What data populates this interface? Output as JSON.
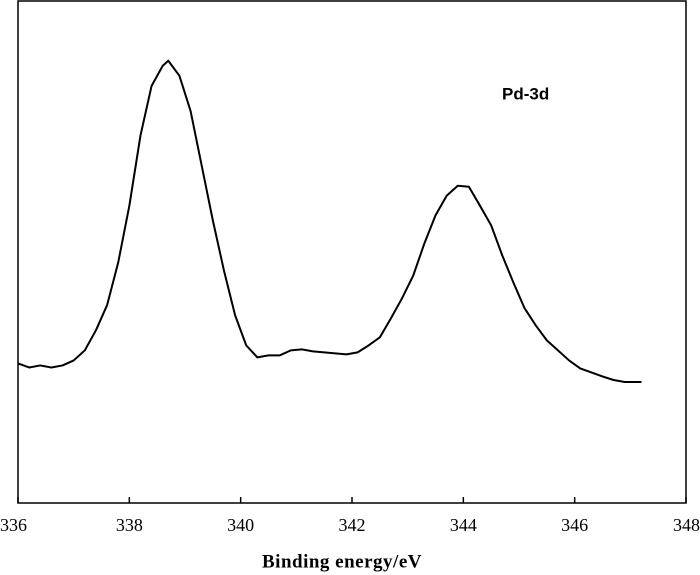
{
  "chart_data": {
    "type": "line",
    "xlabel": "Binding energy/eV",
    "annotation": "Pd-3d",
    "xlim": [
      336,
      348
    ],
    "xticks": [
      336,
      338,
      340,
      342,
      344,
      346,
      348
    ],
    "ylim": [
      0,
      100
    ],
    "color": "#000000",
    "x": [
      336.0,
      336.2,
      336.4,
      336.6,
      336.8,
      337.0,
      337.2,
      337.4,
      337.6,
      337.8,
      338.0,
      338.2,
      338.4,
      338.6,
      338.7,
      338.9,
      339.1,
      339.3,
      339.5,
      339.7,
      339.9,
      340.1,
      340.3,
      340.5,
      340.7,
      340.9,
      341.1,
      341.3,
      341.5,
      341.9,
      342.1,
      342.3,
      342.5,
      342.7,
      342.9,
      343.1,
      343.3,
      343.5,
      343.7,
      343.9,
      344.1,
      344.3,
      344.5,
      344.7,
      344.9,
      345.1,
      345.3,
      345.5,
      345.7,
      345.9,
      346.1,
      346.3,
      346.5,
      346.7,
      346.9,
      347.1,
      347.2
    ],
    "values": [
      27.8,
      27.0,
      27.4,
      27.0,
      27.4,
      28.4,
      30.4,
      34.4,
      39.4,
      47.9,
      59.2,
      73.2,
      83.1,
      87.1,
      88.1,
      85.1,
      78.1,
      67.2,
      56.3,
      46.3,
      37.4,
      31.4,
      29.0,
      29.4,
      29.4,
      30.4,
      30.6,
      30.2,
      30.0,
      29.6,
      30.0,
      31.4,
      33.0,
      36.8,
      40.8,
      45.3,
      51.7,
      57.3,
      61.2,
      63.2,
      63.0,
      59.2,
      55.3,
      49.3,
      43.9,
      38.8,
      35.4,
      32.4,
      30.4,
      28.4,
      26.8,
      26.0,
      25.2,
      24.5,
      24.1,
      24.1,
      24.1
    ]
  }
}
